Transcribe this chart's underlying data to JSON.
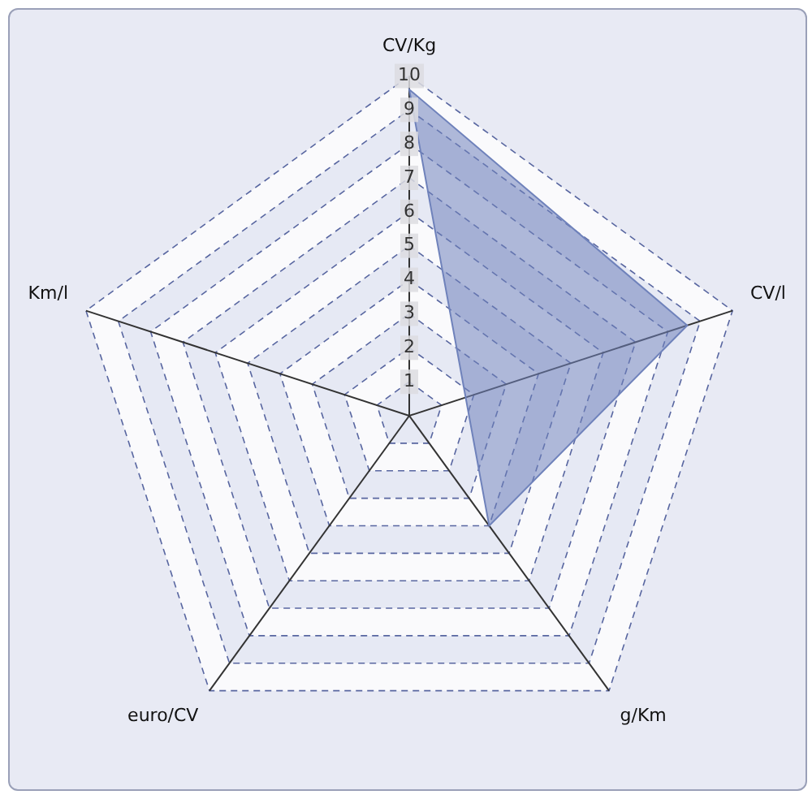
{
  "chart_data": {
    "type": "radar",
    "categories": [
      "CV/Kg",
      "CV/l",
      "g/Km",
      "euro/CV",
      "Km/l"
    ],
    "series": [
      {
        "color": "#6f82bb",
        "values": [
          9.6,
          8.6,
          4.0,
          null,
          null
        ]
      }
    ],
    "ylim": [
      0,
      10
    ],
    "yticks": [
      1,
      2,
      3,
      4,
      5,
      6,
      7,
      8,
      9,
      10
    ],
    "grid": true,
    "legend": false
  }
}
